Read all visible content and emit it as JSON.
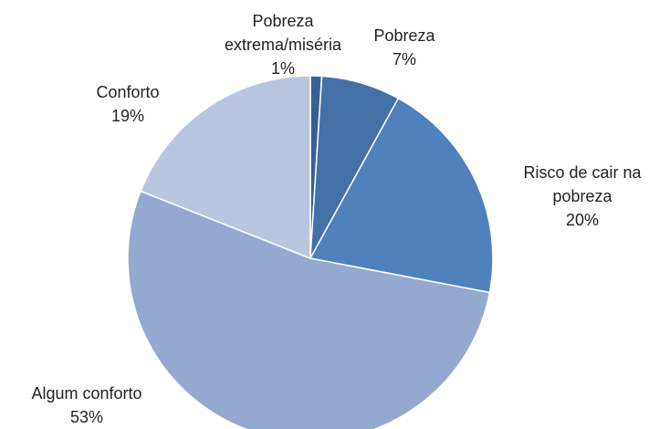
{
  "chart_data": {
    "type": "pie",
    "categories": [
      "Pobreza extrema/miséria",
      "Pobreza",
      "Risco de cair na pobreza",
      "Algum conforto",
      "Conforto"
    ],
    "values": [
      1,
      7,
      20,
      53,
      19
    ],
    "value_labels": [
      "1%",
      "7%",
      "20%",
      "53%",
      "19%"
    ],
    "colors": [
      "#3a5f96",
      "#4470a8",
      "#4f81bd",
      "#95a9d0",
      "#b9c6e0"
    ]
  }
}
